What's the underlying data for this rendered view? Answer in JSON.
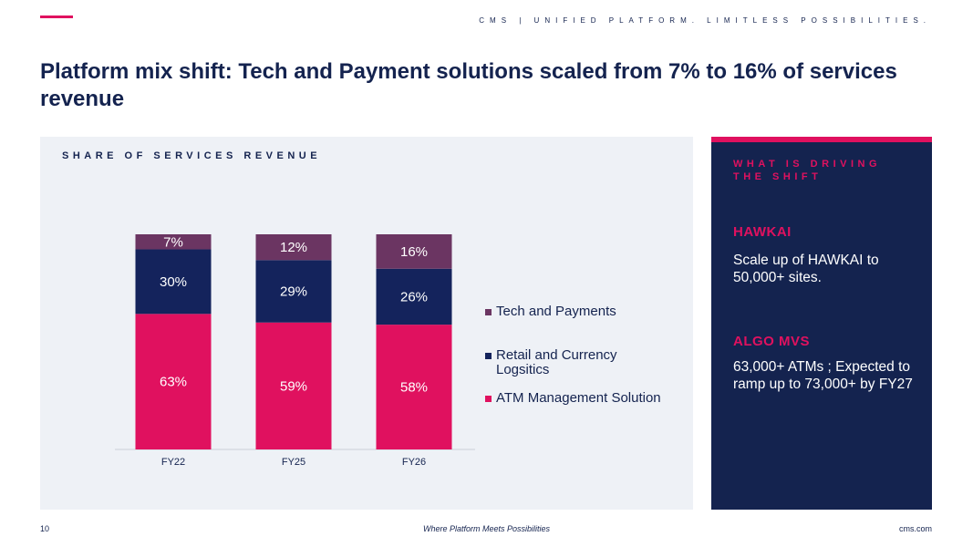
{
  "header": {
    "tagline": "CMS | UNIFIED PLATFORM. LIMITLESS POSSIBILITIES.",
    "title": "Platform mix shift: Tech and Payment solutions scaled from 7% to 16% of services revenue",
    "accent_color": "#e0115f"
  },
  "chart_panel": {
    "heading": "SHARE OF SERVICES REVENUE"
  },
  "chart_data": {
    "type": "bar",
    "stacked": true,
    "categories": [
      "FY22",
      "FY25",
      "FY26"
    ],
    "series": [
      {
        "name": "ATM Management Solution",
        "values": [
          63,
          59,
          58
        ],
        "labels": [
          "63%",
          "59%",
          "58%"
        ],
        "color": "#e0115f"
      },
      {
        "name": "Retail and Currency Logsitics",
        "values": [
          30,
          29,
          26
        ],
        "labels": [
          "30%",
          "29%",
          "26%"
        ],
        "color": "#14235c"
      },
      {
        "name": "Tech and Payments",
        "values": [
          7,
          12,
          16
        ],
        "labels": [
          "7%",
          "12%",
          "16%"
        ],
        "color": "#6b3562"
      }
    ],
    "ylim": [
      0,
      100
    ],
    "legend_position": "right",
    "legend_order": [
      "Tech and Payments",
      "Retail and Currency Logsitics",
      "ATM Management Solution"
    ],
    "grid": false
  },
  "side_panel": {
    "heading": "WHAT IS DRIVING THE SHIFT",
    "drivers": [
      {
        "title": "HAWKAI",
        "desc": "Scale up of HAWKAI to 50,000+ sites."
      },
      {
        "title": "ALGO MVS",
        "desc": "63,000+ ATMs ; Expected to ramp up to 73,000+ by FY27"
      }
    ]
  },
  "footer": {
    "page_number": "10",
    "tagline": "Where Platform Meets Possibilities",
    "site": "cms.com"
  }
}
